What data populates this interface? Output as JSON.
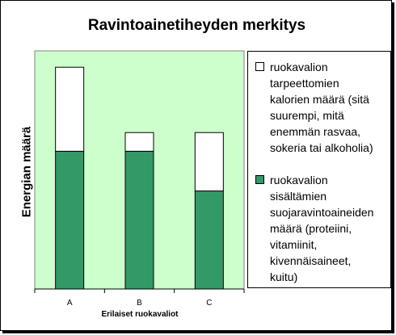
{
  "chart_data": {
    "type": "bar",
    "stacked": true,
    "title": "Ravintoainetiheyden merkitys",
    "xlabel": "Erilaiset ruokavaliot",
    "ylabel": "Energian määrä",
    "categories": [
      "A",
      "B",
      "C"
    ],
    "series": [
      {
        "name": "ruokavalion\nsisältämien\nsuojaravintoaineiden\nmäärä (proteiini,\nvitamiinit,\nkivennäisaineet,\nkuitu)",
        "color": "#339966",
        "values": [
          59,
          59,
          42
        ]
      },
      {
        "name": "ruokavalion\ntarpeettomien\nkalorien määrä (sitä\nsuurempi, mitä\nenemmän rasvaa,\nsokeria tai alkoholia)",
        "color": "#ffffff",
        "values": [
          36,
          8,
          25
        ]
      }
    ],
    "ylim": [
      0,
      102
    ],
    "plot_background": "#ccffcc",
    "grid": false,
    "y_ticks_shown": false,
    "legend_position": "right"
  }
}
